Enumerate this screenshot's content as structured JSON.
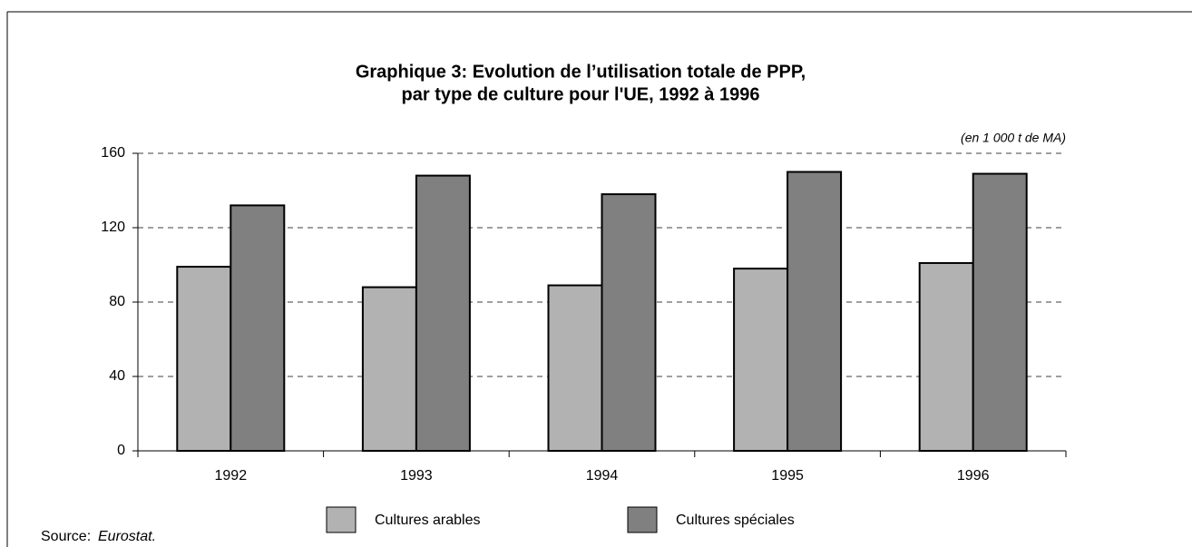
{
  "chart_data": {
    "type": "bar",
    "title": [
      "Graphique 3: Evolution de l’utilisation totale de PPP,",
      "par type de culture pour l'UE, 1992 à 1996"
    ],
    "unit_label": "(en 1 000 t de MA)",
    "categories": [
      "1992",
      "1993",
      "1994",
      "1995",
      "1996"
    ],
    "series": [
      {
        "name": "Cultures arables",
        "color": "#b2b2b2",
        "values": [
          99,
          88,
          89,
          98,
          101
        ]
      },
      {
        "name": "Cultures spéciales",
        "color": "#808080",
        "values": [
          132,
          148,
          138,
          150,
          149
        ]
      }
    ],
    "ylim": [
      0,
      160
    ],
    "yticks": [
      0,
      40,
      80,
      120,
      160
    ],
    "grid": true,
    "source_label": "Source:",
    "source": "Eurostat."
  }
}
